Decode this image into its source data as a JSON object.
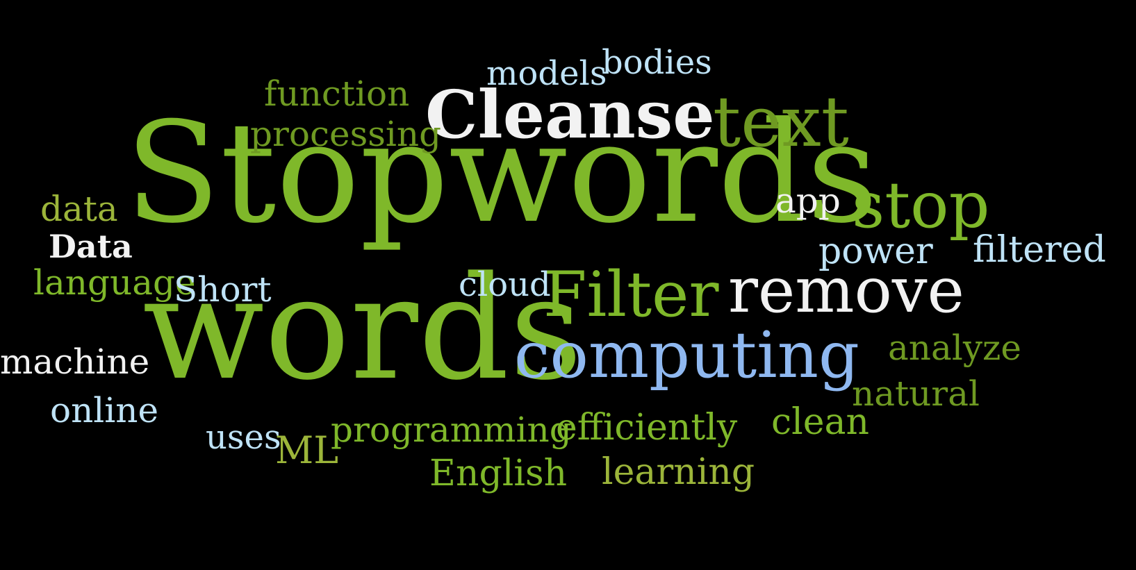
{
  "words": {
    "stopwords": "Stopwords",
    "words": "words",
    "cleanse": "Cleanse",
    "text": "text",
    "filter": "Filter",
    "remove": "remove",
    "computing": "computing",
    "stop": "stop",
    "models": "models",
    "bodies": "bodies",
    "function": "function",
    "processing": "processing",
    "data_lower": "data",
    "data_title": "Data",
    "language": "language",
    "short": "Short",
    "machine": "machine",
    "online": "online",
    "uses": "uses",
    "ml": "ML",
    "programming": "programming",
    "english": "English",
    "efficiently": "efficiently",
    "learning": "learning",
    "clean": "clean",
    "natural": "natural",
    "analyze": "analyze",
    "filtered": "filtered",
    "power": "power",
    "app": "app",
    "cloud": "cloud"
  },
  "colors": {
    "background": "#000000",
    "green": "#7fb82a",
    "olive": "#6f9a22",
    "yellowgreen": "#9cb53a",
    "white": "#f2f2f2",
    "lightblue": "#bfe3f7",
    "blue": "#8fb8f0"
  }
}
